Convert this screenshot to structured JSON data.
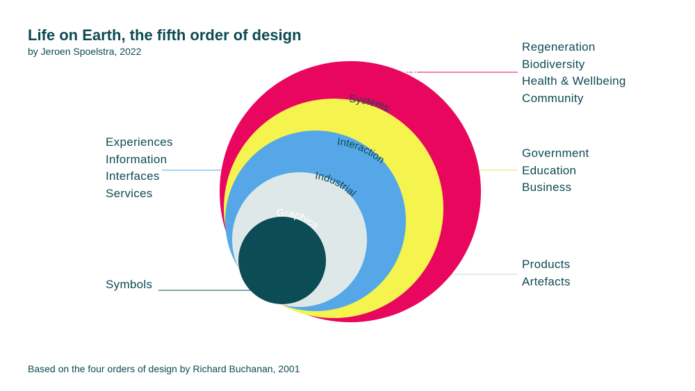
{
  "header": {
    "title": "Life on Earth, the fifth order of design",
    "subtitle": "by Jeroen Spoelstra, 2022"
  },
  "footer": {
    "note": "Based on the four orders of design by Richard Buchanan, 2001"
  },
  "orders": [
    {
      "label": "Life on Earth",
      "color": "#e8065e"
    },
    {
      "label": "Systems",
      "color": "#f5f44f"
    },
    {
      "label": "Interaction",
      "color": "#56a7e8"
    },
    {
      "label": "Industrial",
      "color": "#dfe8e8"
    },
    {
      "label": "Graphics",
      "color": "#0c4c55"
    }
  ],
  "annotations": {
    "life": [
      "Regeneration",
      "Biodiversity",
      "Health & Wellbeing",
      "Community"
    ],
    "systems": [
      "Government",
      "Education",
      "Business"
    ],
    "interaction": [
      "Experiences",
      "Information",
      "Interfaces",
      "Services"
    ],
    "industrial": [
      "Products",
      "Artefacts"
    ],
    "graphics": [
      "Symbols"
    ]
  },
  "connector_colors": {
    "life": "#e8065e",
    "systems": "#e6e35a",
    "interaction": "#56a7e8",
    "industrial": "#c9d4d4",
    "graphics": "#0c4c55"
  }
}
